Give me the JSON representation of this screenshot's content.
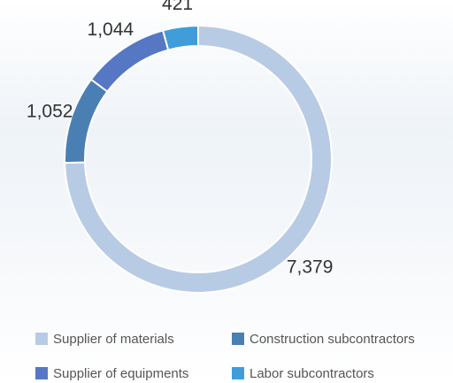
{
  "chart_data": {
    "type": "donut",
    "categories": [
      "Supplier of materials",
      "Construction subcontractors",
      "Supplier of equipments",
      "Labor subcontractors"
    ],
    "values": [
      7379,
      1052,
      1044,
      421
    ],
    "value_labels": [
      "7,379",
      "1,052",
      "1,044",
      "421"
    ],
    "colors": [
      "#b8cbe4",
      "#4a7fb4",
      "#5677c3",
      "#409dd9"
    ],
    "legend": "bottom"
  }
}
